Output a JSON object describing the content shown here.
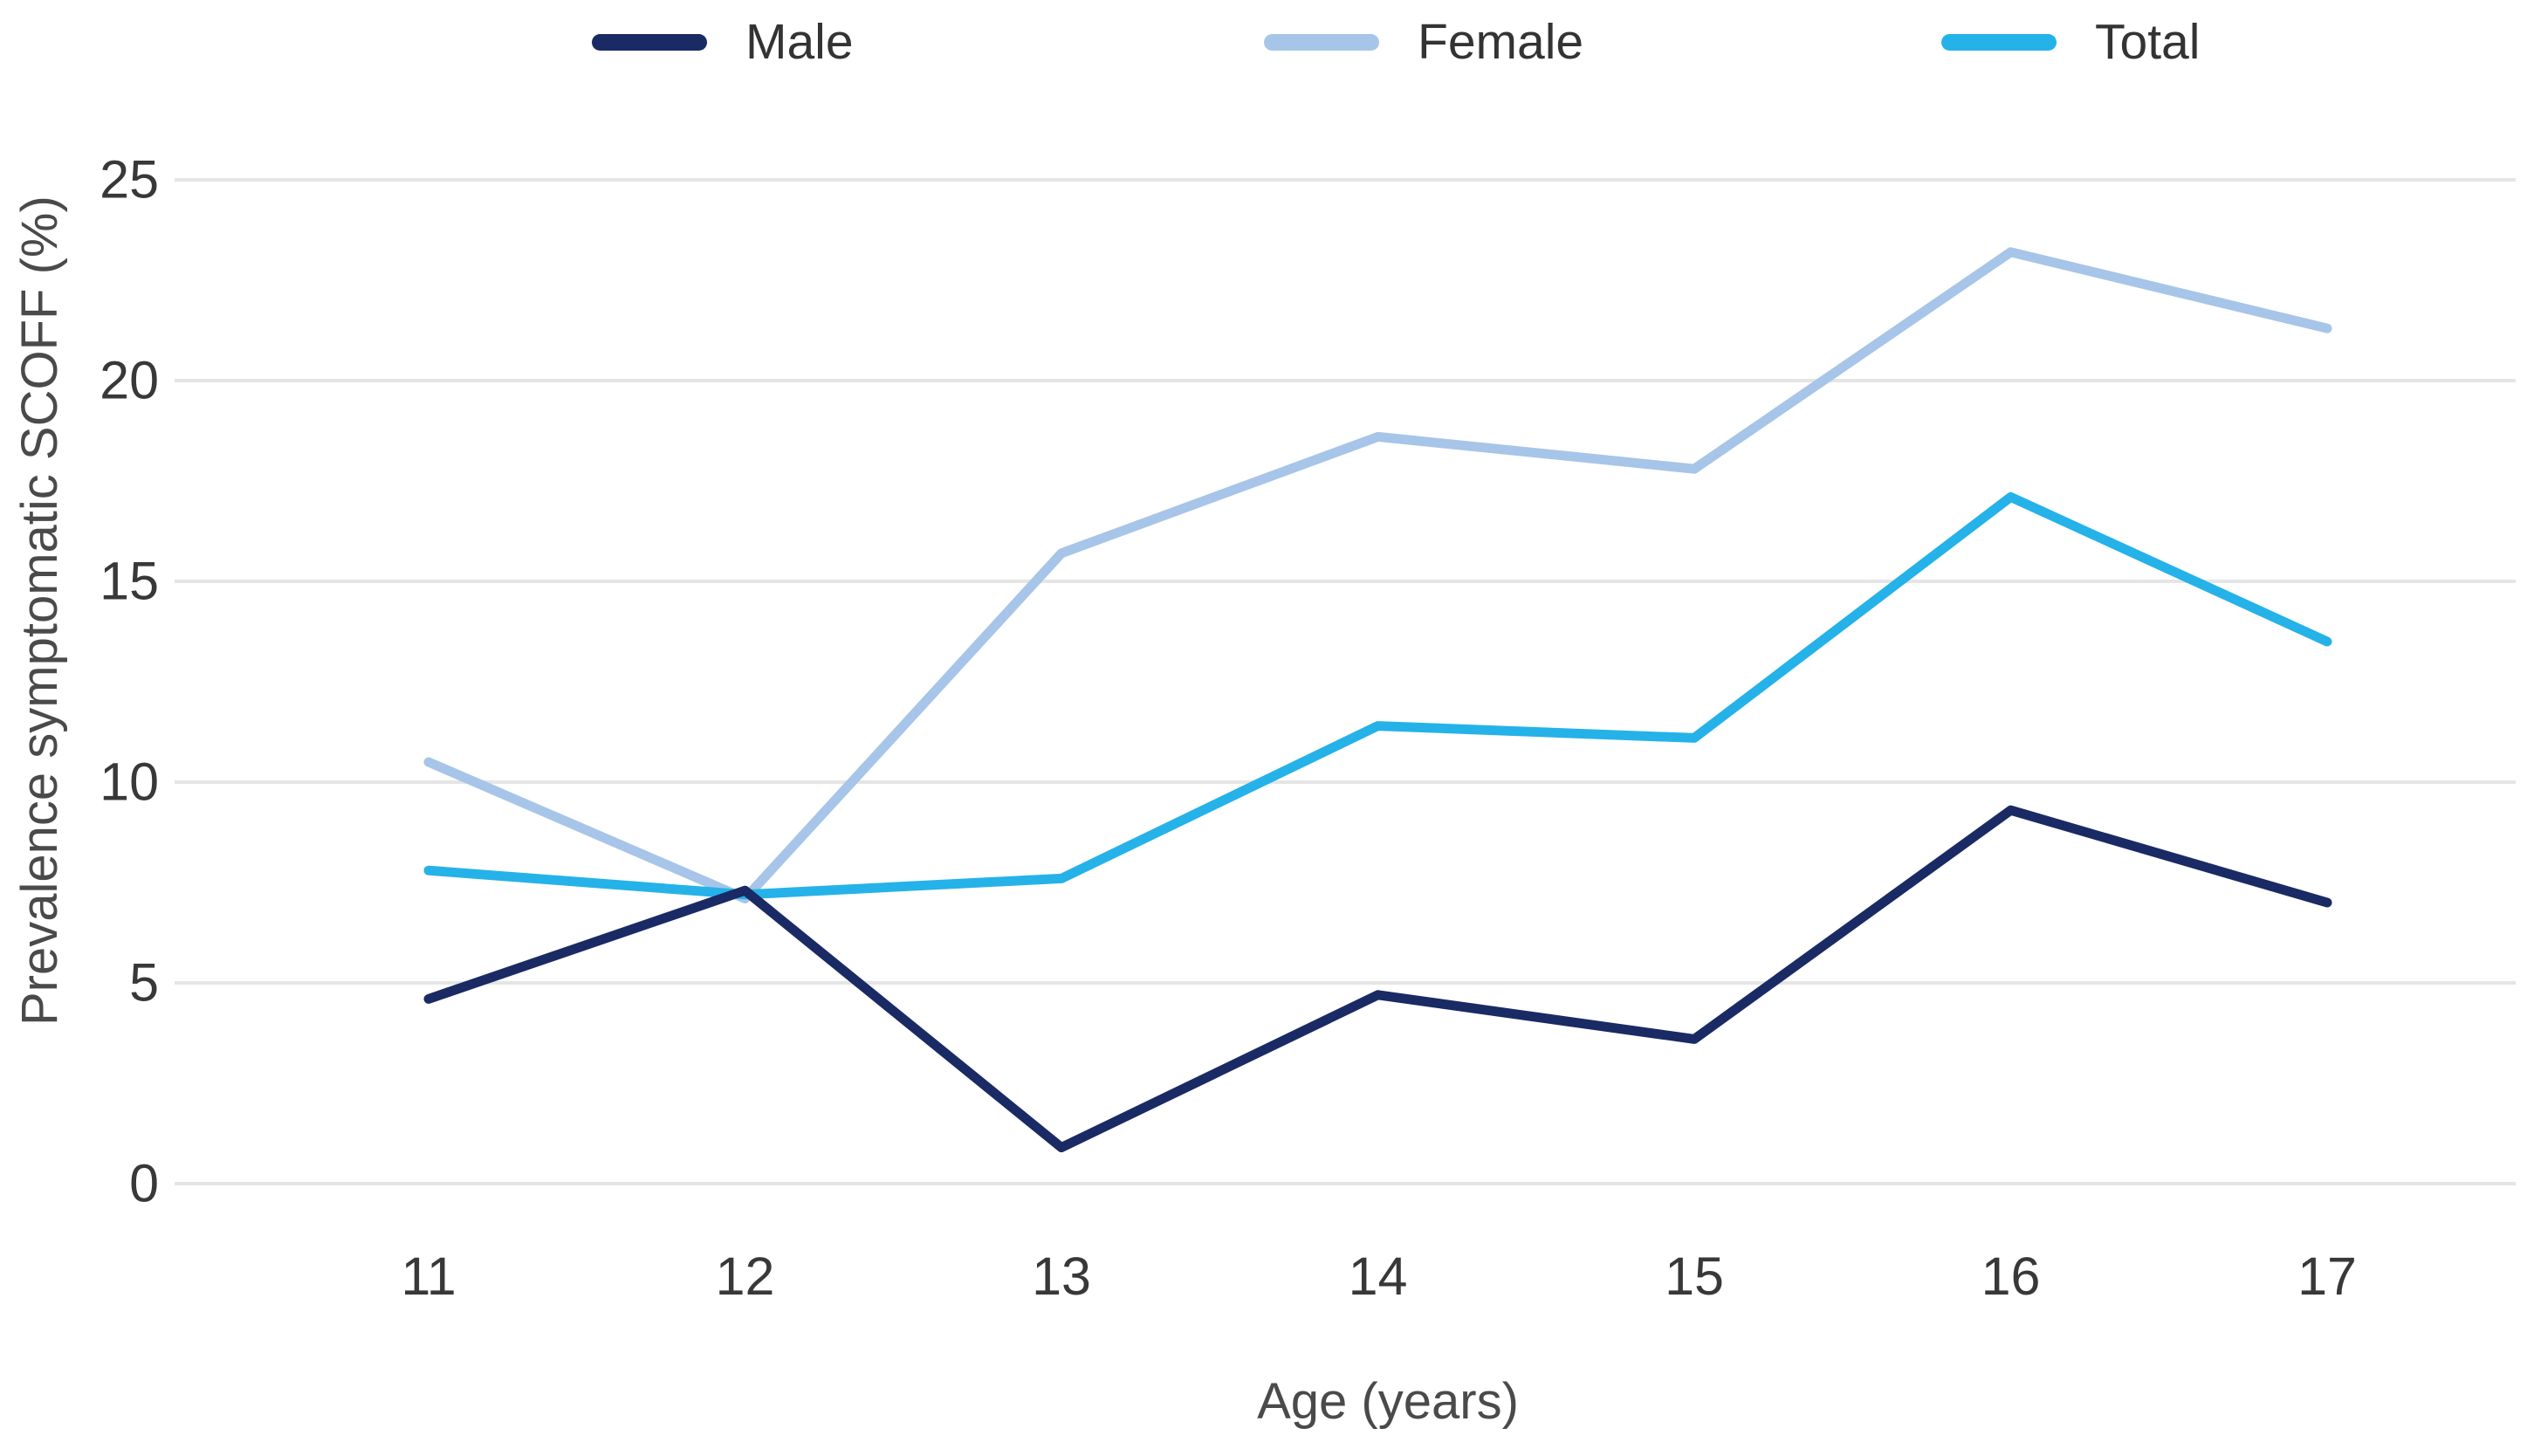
{
  "chart_data": {
    "type": "line",
    "title": "",
    "xlabel": "Age (years)",
    "ylabel": "Prevalence symptomatic SCOFF (%)",
    "x": [
      11,
      12,
      13,
      14,
      15,
      16,
      17
    ],
    "xlim": [
      10.5,
      17.5
    ],
    "ylim": [
      0,
      25
    ],
    "yticks": [
      0,
      5,
      10,
      15,
      20,
      25
    ],
    "grid": "horizontal",
    "legend_position": "top",
    "series": [
      {
        "name": "Male",
        "color": "#1a2a64",
        "values": [
          4.6,
          7.3,
          0.9,
          4.7,
          3.6,
          9.3,
          7.0
        ]
      },
      {
        "name": "Female",
        "color": "#a6c5e8",
        "values": [
          10.5,
          7.1,
          15.7,
          18.6,
          17.8,
          23.2,
          21.3
        ]
      },
      {
        "name": "Total",
        "color": "#25b2e8",
        "values": [
          7.8,
          7.2,
          7.6,
          11.4,
          11.1,
          17.1,
          13.5
        ]
      }
    ]
  },
  "colors": {
    "background": "#ffffff",
    "grid": "#e5e5e5",
    "tick_text": "#383838",
    "axis_title_text": "#4a4a4a",
    "legend_text": "#333333"
  }
}
